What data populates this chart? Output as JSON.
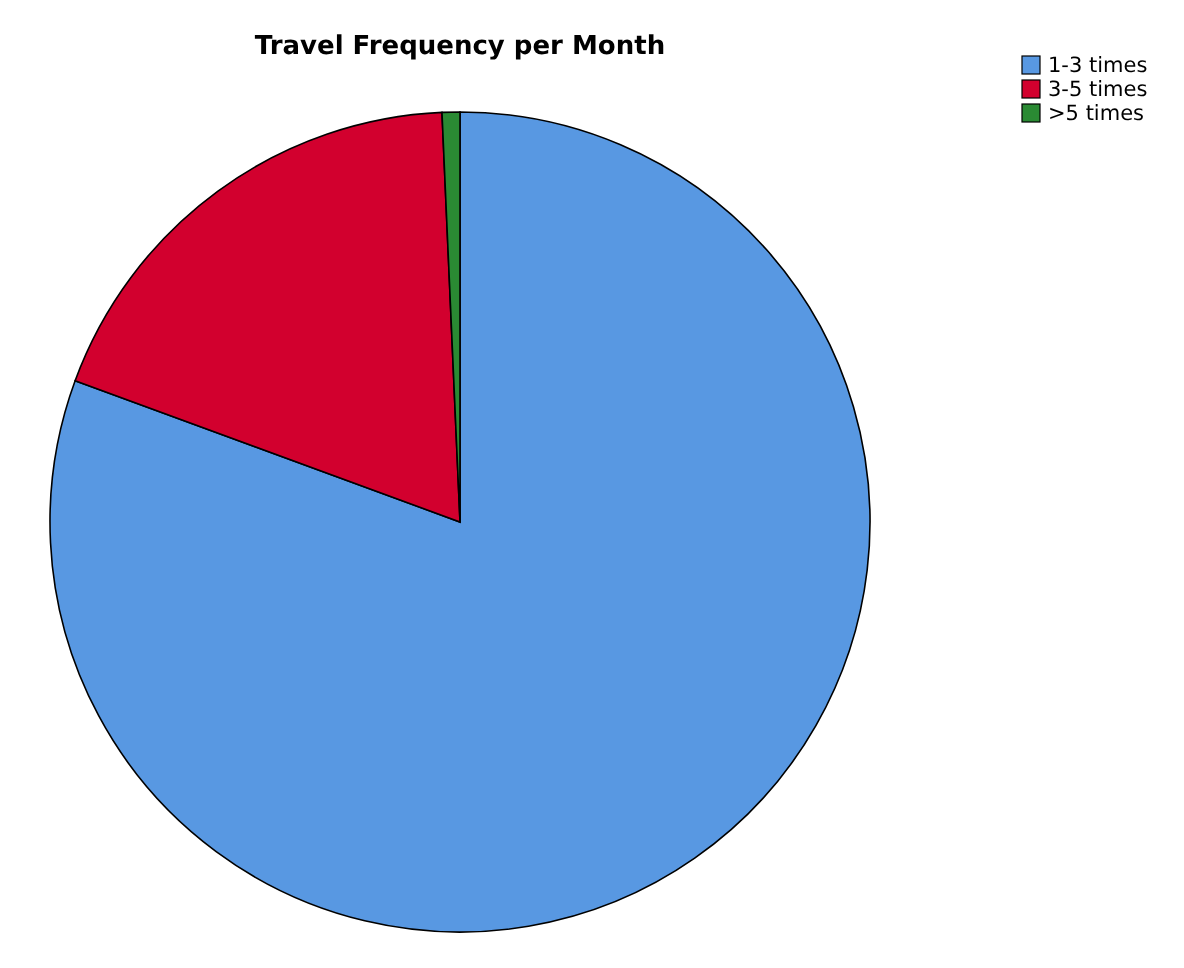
{
  "chart_data": {
    "type": "pie",
    "title": "Travel Frequency per Month",
    "categories": [
      "1-3 times",
      "3-5 times",
      ">5 times"
    ],
    "values": [
      80.6,
      18.7,
      0.7
    ],
    "colors": [
      "#5898e2",
      "#d2002e",
      "#2a8a33"
    ],
    "legend": "top right"
  }
}
